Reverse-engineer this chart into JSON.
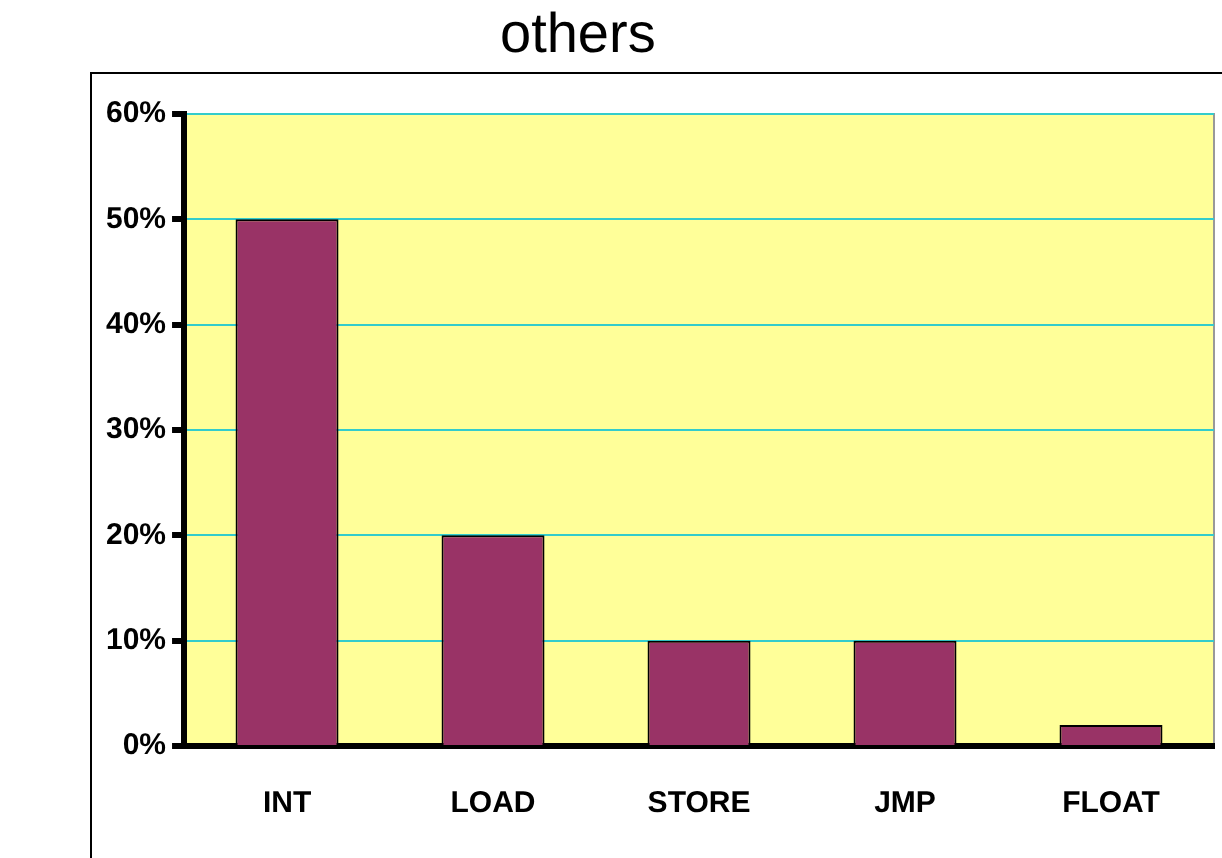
{
  "chart_data": {
    "type": "bar",
    "title": "others",
    "categories": [
      "INT",
      "LOAD",
      "STORE",
      "JMP",
      "FLOAT"
    ],
    "values": [
      50,
      20,
      10,
      10,
      2
    ],
    "color": "#993366",
    "ylim": [
      0,
      60
    ],
    "yticks": [
      {
        "value": 0,
        "label": "0%"
      },
      {
        "value": 10,
        "label": "10%"
      },
      {
        "value": 20,
        "label": "20%"
      },
      {
        "value": 30,
        "label": "30%"
      },
      {
        "value": 40,
        "label": "40%"
      },
      {
        "value": 50,
        "label": "50%"
      },
      {
        "value": 60,
        "label": "60%"
      }
    ],
    "grid": "y",
    "legend": false
  }
}
